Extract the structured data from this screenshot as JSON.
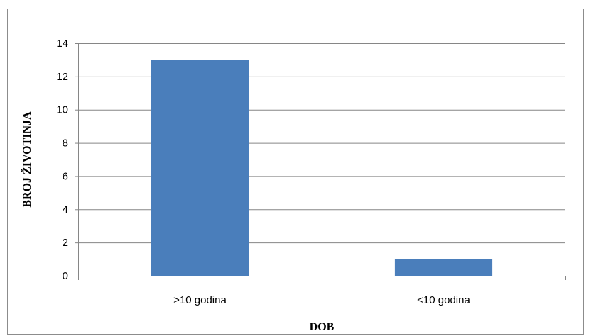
{
  "chart_data": {
    "type": "bar",
    "categories": [
      ">10 godina",
      "<10 godina"
    ],
    "values": [
      13,
      1
    ],
    "xlabel": "DOB",
    "ylabel": "BROJ ŽIVOTINJA",
    "ylim": [
      0,
      14
    ],
    "yticks": [
      0,
      2,
      4,
      6,
      8,
      10,
      12,
      14
    ],
    "grid": true,
    "legend": "none",
    "colors": {
      "bar": "#4a7ebb",
      "grid": "#868686",
      "axis": "#868686"
    }
  }
}
